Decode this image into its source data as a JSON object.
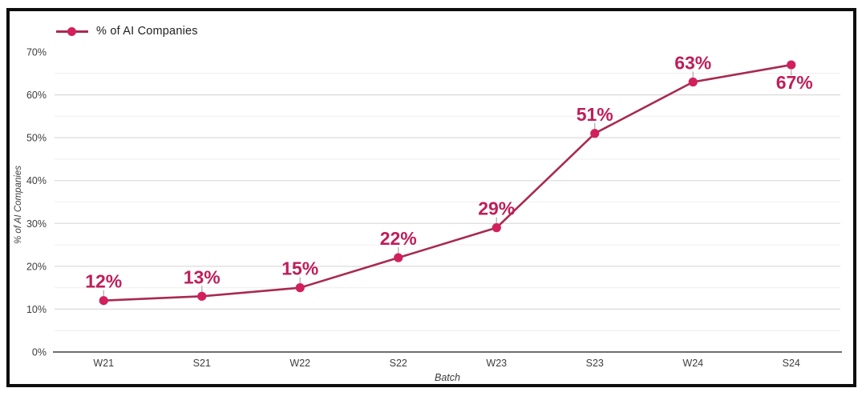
{
  "legend": {
    "label": "% of AI Companies"
  },
  "chart_data": {
    "type": "line",
    "title": "",
    "xlabel": "Batch",
    "ylabel": "% of AI Companies",
    "categories": [
      "W21",
      "S21",
      "W22",
      "S22",
      "W23",
      "S23",
      "W24",
      "S24"
    ],
    "series": [
      {
        "name": "% of AI Companies",
        "values": [
          12,
          13,
          15,
          22,
          29,
          51,
          63,
          67
        ]
      }
    ],
    "data_labels": [
      "12%",
      "13%",
      "15%",
      "22%",
      "29%",
      "51%",
      "63%",
      "67%"
    ],
    "label_placement": [
      "above",
      "above",
      "above",
      "above",
      "above",
      "above",
      "above",
      "below"
    ],
    "ylim": [
      0,
      70
    ],
    "y_axis": {
      "tick_values": [
        0,
        10,
        20,
        30,
        40,
        50,
        60,
        70
      ],
      "tick_labels": [
        "0%",
        "10%",
        "20%",
        "30%",
        "40%",
        "50%",
        "60%",
        "70%"
      ],
      "major_gridline_values": [
        10,
        20,
        30,
        40,
        50,
        60
      ],
      "minor_gridline_values": [
        5,
        15,
        25,
        35,
        45,
        55,
        65
      ]
    },
    "grid": true,
    "legend_position": "top-left",
    "colors": {
      "line": "#a82a50",
      "marker": "#d2205c",
      "data_label": "#bf1e5a",
      "grid_major": "#dcdcdc",
      "grid_minor": "#f1f1f1",
      "axis_line": "#6e6e6e",
      "tick_text": "#3d3d3d",
      "leader": "#b5b5b5"
    }
  }
}
